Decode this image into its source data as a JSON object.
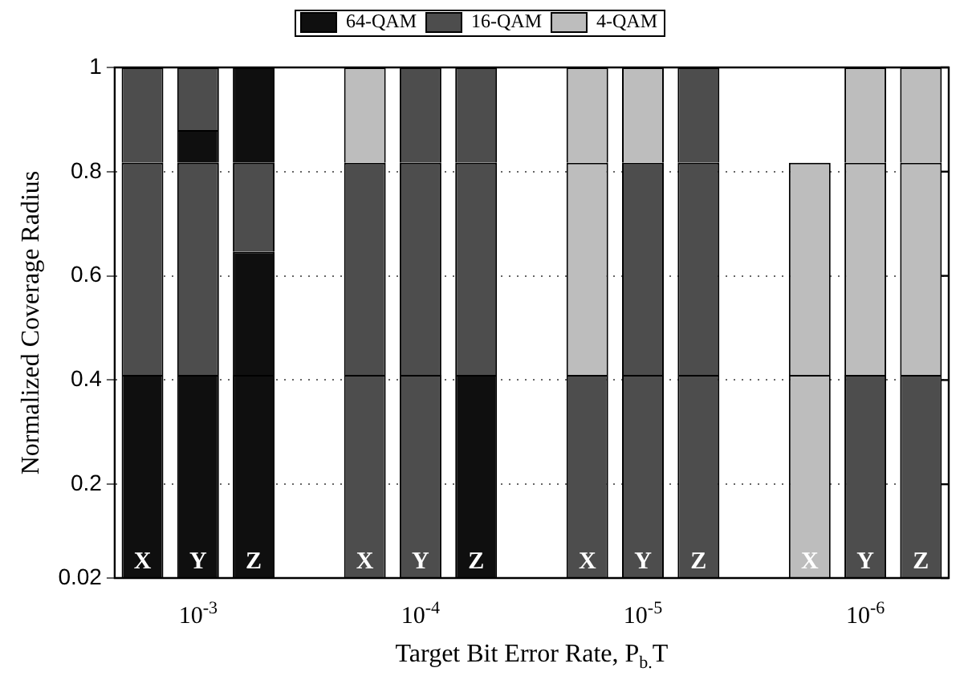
{
  "chart_data": {
    "type": "bar",
    "stacked": true,
    "ylabel": "Normalized Coverage Radius",
    "xlabel": "Target Bit Error Rate, P$_{b.}$T",
    "categories": [
      "X",
      "Y",
      "Z",
      null,
      "X",
      "Y",
      "Z",
      null,
      "X",
      "Y",
      "Z",
      null,
      "X",
      "Y",
      "Z"
    ],
    "annotations": [
      "10$^{-3}$",
      "10$^{-4}$",
      "10$^{-5}$",
      "10$^{-6}$"
    ],
    "series": [
      {
        "name": "64-QAM",
        "color": "#0f0f0f",
        "values": [
          0.41,
          0.41,
          0.41,
          null,
          null,
          null,
          0.41,
          null,
          null,
          null,
          null,
          null,
          null,
          null,
          null
        ]
      },
      {
        "name": "16-QAM",
        "color": "#4d4d4d",
        "values": [
          null,
          null,
          null,
          null,
          0.41,
          0.41,
          null,
          null,
          0.41,
          0.41,
          0.41,
          null,
          null,
          0.41,
          0.41
        ]
      },
      {
        "name": "4-QAM",
        "color": "#bdbdbd",
        "values": [
          null,
          null,
          null,
          null,
          null,
          null,
          null,
          null,
          null,
          null,
          null,
          null,
          0.41,
          null,
          null
        ]
      },
      {
        "color": "#0f0f0f",
        "values": [
          null,
          null,
          0.236,
          null,
          null,
          null,
          null,
          null,
          null,
          null,
          null,
          null,
          null,
          null,
          null
        ]
      },
      {
        "color": "#4d4d4d",
        "values": [
          0.407,
          0.407,
          null,
          null,
          0.407,
          0.407,
          0.407,
          null,
          null,
          0.407,
          0.407,
          null,
          null,
          null,
          null
        ]
      },
      {
        "color": "#bdbdbd",
        "values": [
          null,
          null,
          null,
          null,
          null,
          null,
          null,
          null,
          0.407,
          null,
          null,
          null,
          0.407,
          0.407,
          0.407
        ]
      },
      {
        "color": "#0f0f0f",
        "values": [
          null,
          0.063,
          null,
          null,
          null,
          null,
          null,
          null,
          null,
          null,
          null,
          null,
          null,
          null,
          null
        ]
      },
      {
        "color": "#4d4d4d",
        "values": [
          0.183,
          null,
          0.171,
          null,
          null,
          0.183,
          0.183,
          null,
          null,
          null,
          0.183,
          null,
          null,
          null,
          null
        ]
      },
      {
        "color": "#bdbdbd",
        "values": [
          null,
          null,
          null,
          null,
          0.183,
          null,
          null,
          null,
          0.183,
          0.183,
          null,
          null,
          null,
          0.183,
          0.183
        ]
      },
      {
        "color": "#0f0f0f",
        "values": [
          null,
          null,
          0.183,
          null,
          null,
          null,
          null,
          null,
          null,
          null,
          null,
          null,
          null,
          null,
          null
        ]
      },
      {
        "color": "#4d4d4d",
        "values": [
          null,
          0.12,
          null,
          null,
          null,
          null,
          null,
          null,
          null,
          null,
          null,
          null,
          null,
          null,
          null
        ]
      }
    ],
    "ylim": [
      0.02,
      1
    ],
    "yticks": [
      0.02,
      0.2,
      0.4,
      0.6,
      0.8,
      1
    ],
    "grid": "y",
    "legend": "top"
  }
}
